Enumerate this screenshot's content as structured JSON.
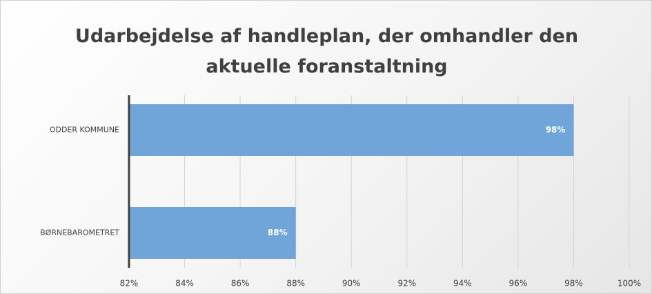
{
  "chart_data": {
    "type": "bar",
    "orientation": "horizontal",
    "title": "Udarbejdelse af handleplan, der omhandler den aktuelle foranstaltning",
    "categories": [
      "ODDER KOMMUNE",
      "BØRNEBAROMETRET"
    ],
    "values": [
      98,
      88
    ],
    "value_labels": [
      "98%",
      "88%"
    ],
    "color": "#6fa5d8",
    "xlim": [
      82,
      100
    ],
    "xticks": [
      {
        "value": 82,
        "label": "82%"
      },
      {
        "value": 84,
        "label": "84%"
      },
      {
        "value": 86,
        "label": "86%"
      },
      {
        "value": 88,
        "label": "88%"
      },
      {
        "value": 90,
        "label": "90%"
      },
      {
        "value": 92,
        "label": "92%"
      },
      {
        "value": 94,
        "label": "94%"
      },
      {
        "value": 96,
        "label": "96%"
      },
      {
        "value": 98,
        "label": "98%"
      },
      {
        "value": 100,
        "label": "100%"
      }
    ],
    "grid": true
  }
}
